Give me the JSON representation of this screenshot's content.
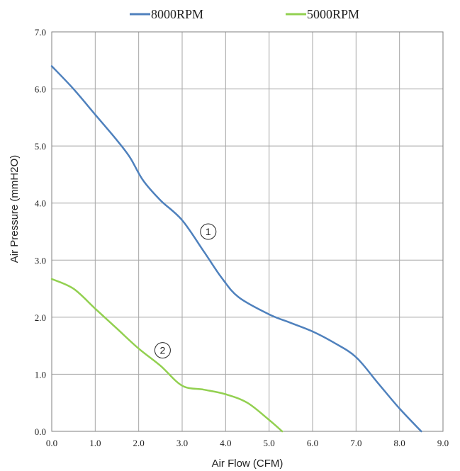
{
  "chart_data": {
    "type": "line",
    "title": "",
    "xlabel": "Air Flow (CFM)",
    "ylabel": "Air Pressure (mmH2O)",
    "xlim": [
      0,
      9
    ],
    "ylim": [
      0,
      7
    ],
    "x_ticks": [
      "0.0",
      "1.0",
      "2.0",
      "3.0",
      "4.0",
      "5.0",
      "6.0",
      "7.0",
      "8.0",
      "9.0"
    ],
    "y_ticks": [
      "0.0",
      "1.0",
      "2.0",
      "3.0",
      "4.0",
      "5.0",
      "6.0",
      "7.0"
    ],
    "grid": true,
    "legend_position": "top",
    "series": [
      {
        "name": "8000RPM",
        "color": "#4f81bd",
        "points": [
          [
            0,
            6.4
          ],
          [
            0.5,
            6.0
          ],
          [
            1.0,
            5.55
          ],
          [
            1.5,
            5.1
          ],
          [
            1.8,
            4.8
          ],
          [
            2.1,
            4.4
          ],
          [
            2.5,
            4.05
          ],
          [
            3.0,
            3.7
          ],
          [
            3.5,
            3.15
          ],
          [
            3.9,
            2.7
          ],
          [
            4.3,
            2.35
          ],
          [
            5.0,
            2.05
          ],
          [
            5.5,
            1.9
          ],
          [
            6.0,
            1.75
          ],
          [
            6.5,
            1.55
          ],
          [
            7.0,
            1.3
          ],
          [
            7.5,
            0.85
          ],
          [
            8.0,
            0.4
          ],
          [
            8.5,
            0.0
          ]
        ]
      },
      {
        "name": "5000RPM",
        "color": "#92d050",
        "points": [
          [
            0,
            2.67
          ],
          [
            0.5,
            2.5
          ],
          [
            1.0,
            2.15
          ],
          [
            1.5,
            1.8
          ],
          [
            2.0,
            1.45
          ],
          [
            2.5,
            1.15
          ],
          [
            3.0,
            0.8
          ],
          [
            3.5,
            0.73
          ],
          [
            4.0,
            0.65
          ],
          [
            4.5,
            0.5
          ],
          [
            5.0,
            0.2
          ],
          [
            5.3,
            0.0
          ]
        ]
      }
    ],
    "annotations": [
      {
        "text": "1",
        "x": 3.6,
        "y": 3.5
      },
      {
        "text": "2",
        "x": 2.55,
        "y": 1.42
      }
    ]
  }
}
